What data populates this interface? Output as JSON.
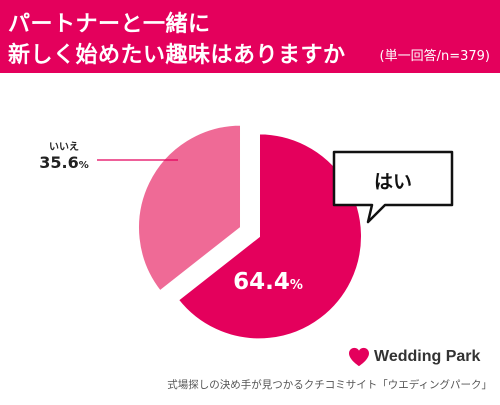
{
  "header": {
    "title_line1": "パートナーと一緒に",
    "title_line2": "新しく始めたい趣味はありますか",
    "note": "(単一回答/n=379)"
  },
  "chart_data": {
    "type": "pie",
    "slices": [
      {
        "label": "はい",
        "value": 64.4,
        "value_text": "64.4",
        "unit": "%",
        "color": "#e4005c"
      },
      {
        "label": "いいえ",
        "value": 35.6,
        "value_text": "35.6",
        "unit": "%",
        "color": "#ef6a96"
      }
    ]
  },
  "footer": {
    "brand": "Wedding Park",
    "caption": "式場探しの決め手が見つかるクチコミサイト「ウエディングパーク」"
  },
  "colors": {
    "accent": "#e4005c",
    "secondary": "#ef6a96"
  }
}
